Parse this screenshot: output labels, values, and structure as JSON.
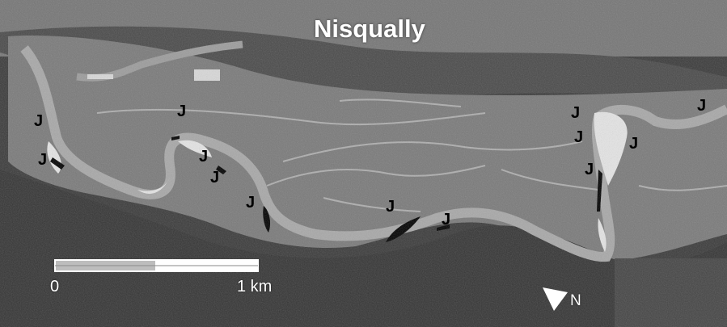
{
  "title": "Nisqually",
  "marker_label": "J",
  "scale_bar": {
    "start_label": "0",
    "end_label": "1 km"
  },
  "north_arrow": {
    "label": "N"
  },
  "colors": {
    "river": "#a9a9a9",
    "floodplain": "#7c7c7c",
    "hillside": "#3a3a3a",
    "gravel_bar": "#e6e6e6",
    "jam_fill": "#000000",
    "text": "#ffffff"
  }
}
